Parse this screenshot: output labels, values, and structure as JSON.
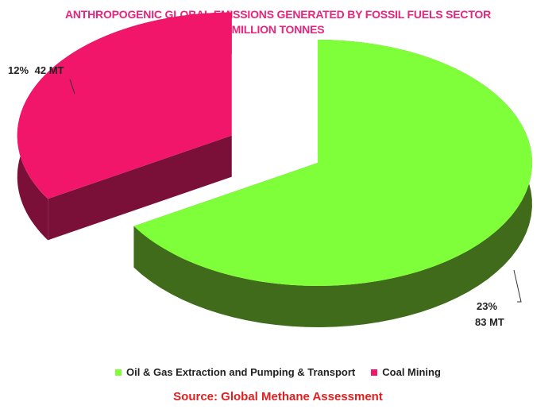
{
  "chart_data": {
    "type": "pie",
    "title": "ANTHROPOGENIC GLOBAL EMISSIONS GENERATED BY FOSSIL FUELS SECTOR",
    "subtitle": "MILLION TONNES",
    "categories": [
      "Oil & Gas Extraction and Pumping & Transport",
      "Coal Mining"
    ],
    "values": [
      83,
      42
    ],
    "data_labels": [
      {
        "percent": "23%",
        "amount": "83 MT"
      },
      {
        "percent": "12%",
        "amount": "42 MT"
      }
    ],
    "colors": [
      "#7fff3a",
      "#f2166b"
    ],
    "side_colors": [
      "#3f6b1a",
      "#7a0f38"
    ],
    "legend_position": "bottom",
    "style": "3D exploded pie"
  },
  "source": "Source: Global Methane Assessment",
  "title_color": "#e8257d",
  "source_color": "#e02020"
}
